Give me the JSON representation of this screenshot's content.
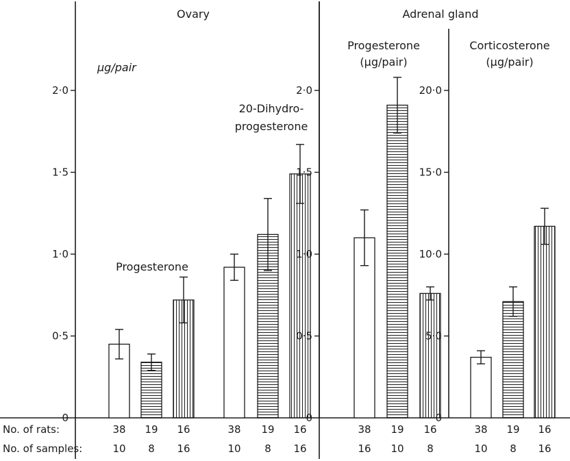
{
  "panels_titles": {
    "ovary": "Ovary",
    "adrenal": "Adrenal gland"
  },
  "ovary_unit": "μg/pair",
  "adrenal_prog_label": [
    "Progesterone",
    "(μg/pair)"
  ],
  "adrenal_cort_label": [
    "Corticosterone",
    "(μg/pair)"
  ],
  "series_labels": {
    "ovary_progesterone": "Progesterone",
    "ovary_dihydro": [
      "20-Dihydro-",
      "progesterone"
    ]
  },
  "row_labels": {
    "rats": "No. of rats:",
    "samples": "No. of samples:"
  },
  "counts": {
    "ovary_progesterone": {
      "rats": [
        "38",
        "19",
        "16"
      ],
      "samples": [
        "10",
        "8",
        "16"
      ]
    },
    "ovary_dihydro": {
      "rats": [
        "38",
        "19",
        "16"
      ],
      "samples": [
        "10",
        "8",
        "16"
      ]
    },
    "adrenal_progesterone": {
      "rats": [
        "38",
        "19",
        "16"
      ],
      "samples": [
        "16",
        "10",
        "8"
      ]
    },
    "adrenal_corticosterone": {
      "rats": [
        "38",
        "19",
        "16"
      ],
      "samples": [
        "10",
        "8",
        "16"
      ]
    }
  },
  "colors": {
    "ink": "#1a1a1a",
    "background": "#ffffff"
  },
  "chart_data": [
    {
      "type": "bar",
      "panel": "Ovary",
      "ylabel": "μg/pair",
      "ylim": [
        0,
        2.0
      ],
      "yticks": [
        "0",
        "0·5",
        "1·0",
        "1·5",
        "2·0"
      ],
      "ytick_values": [
        0,
        0.5,
        1.0,
        1.5,
        2.0
      ],
      "groups": [
        {
          "label": "Progesterone",
          "values": [
            0.45,
            0.34,
            0.72
          ],
          "errors": [
            0.09,
            0.05,
            0.14
          ],
          "fills": [
            "open",
            "horizontal",
            "vertical"
          ]
        },
        {
          "label": "20-Dihydro-progesterone",
          "values": [
            0.92,
            1.12,
            1.49
          ],
          "errors": [
            0.08,
            0.22,
            0.18
          ],
          "fills": [
            "open",
            "horizontal",
            "vertical"
          ]
        }
      ]
    },
    {
      "type": "bar",
      "panel": "Adrenal gland",
      "ylabel": "Progesterone (μg/pair)",
      "ylim": [
        0,
        2.0
      ],
      "yticks": [
        "0",
        "0·5",
        "1·0",
        "1·5",
        "2·0"
      ],
      "ytick_values": [
        0,
        0.5,
        1.0,
        1.5,
        2.0
      ],
      "values": [
        1.1,
        1.91,
        0.76
      ],
      "errors": [
        0.17,
        0.17,
        0.04
      ],
      "fills": [
        "open",
        "horizontal",
        "vertical"
      ]
    },
    {
      "type": "bar",
      "panel": "Adrenal gland",
      "ylabel": "Corticosterone (μg/pair)",
      "ylim": [
        0,
        20.0
      ],
      "yticks": [
        "0",
        "5·0",
        "10·0",
        "15·0",
        "20·0"
      ],
      "ytick_values": [
        0,
        5.0,
        10.0,
        15.0,
        20.0
      ],
      "values": [
        3.7,
        7.1,
        11.7
      ],
      "errors": [
        0.4,
        0.9,
        1.1
      ],
      "fills": [
        "open",
        "horizontal",
        "vertical"
      ]
    }
  ]
}
